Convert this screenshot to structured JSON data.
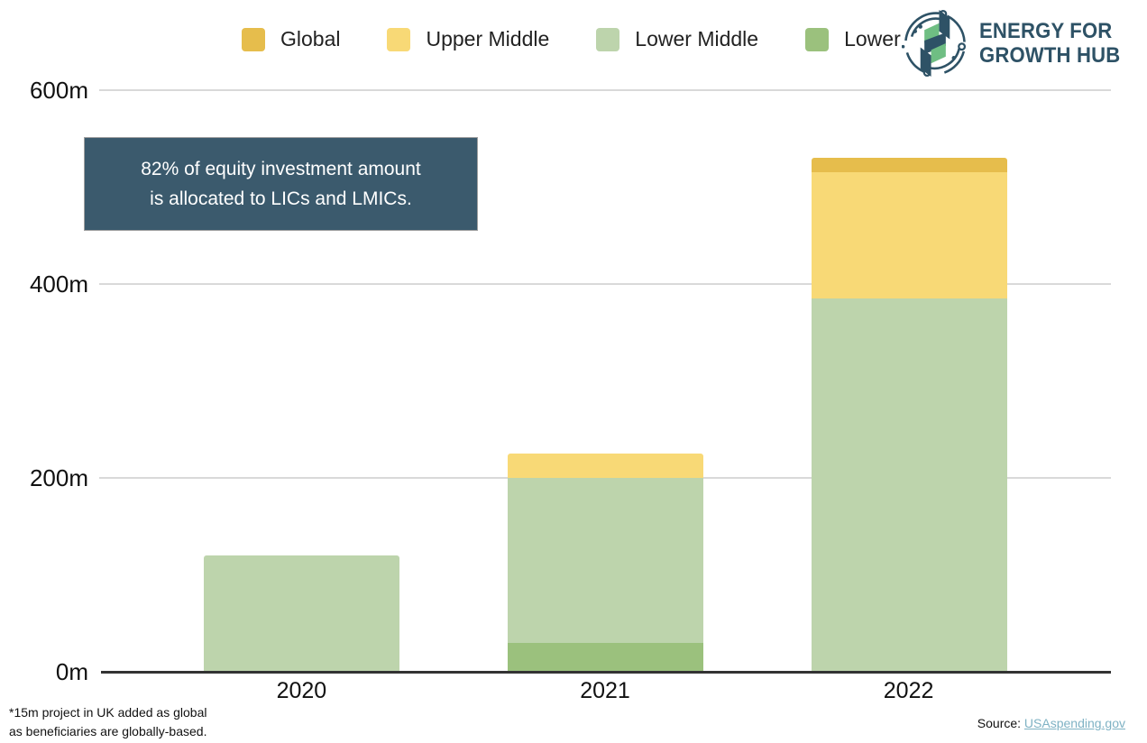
{
  "logo": {
    "line1": "ENERGY FOR",
    "line2": "GROWTH HUB",
    "color": "#2e5266",
    "accent_green": "#6fbe83"
  },
  "callout": {
    "line1": "82% of equity investment amount",
    "line2": "is allocated to LICs and LMICs.",
    "bg": "#3b5a6d"
  },
  "footnote": {
    "line1": "*15m project in UK added as global",
    "line2": "as beneficiaries are globally-based."
  },
  "source": {
    "label": "Source:",
    "link_text": "USAspending.gov"
  },
  "colors": {
    "axis_line": "#333333",
    "gridline": "#d9d9d9",
    "link": "#7fb2c4"
  },
  "chart_data": {
    "type": "bar",
    "stacked": true,
    "title": "",
    "xlabel": "",
    "ylabel": "",
    "categories": [
      "2020",
      "2021",
      "2022"
    ],
    "series": [
      {
        "name": "Global",
        "color": "#e6bd4c",
        "values": [
          0,
          0,
          15
        ]
      },
      {
        "name": "Upper Middle",
        "color": "#f8d976",
        "values": [
          0,
          25,
          130
        ]
      },
      {
        "name": "Lower Middle",
        "color": "#bdd4ac",
        "values": [
          120,
          170,
          385
        ]
      },
      {
        "name": "Lower",
        "color": "#9bc17d",
        "values": [
          0,
          30,
          0
        ]
      }
    ],
    "totals": [
      120,
      225,
      530
    ],
    "ylim": [
      0,
      600
    ],
    "yticks": [
      {
        "value": 0,
        "label": "0m"
      },
      {
        "value": 200,
        "label": "200m"
      },
      {
        "value": 400,
        "label": "400m"
      },
      {
        "value": 600,
        "label": "600m"
      }
    ],
    "grid": true,
    "legend_position": "top"
  }
}
